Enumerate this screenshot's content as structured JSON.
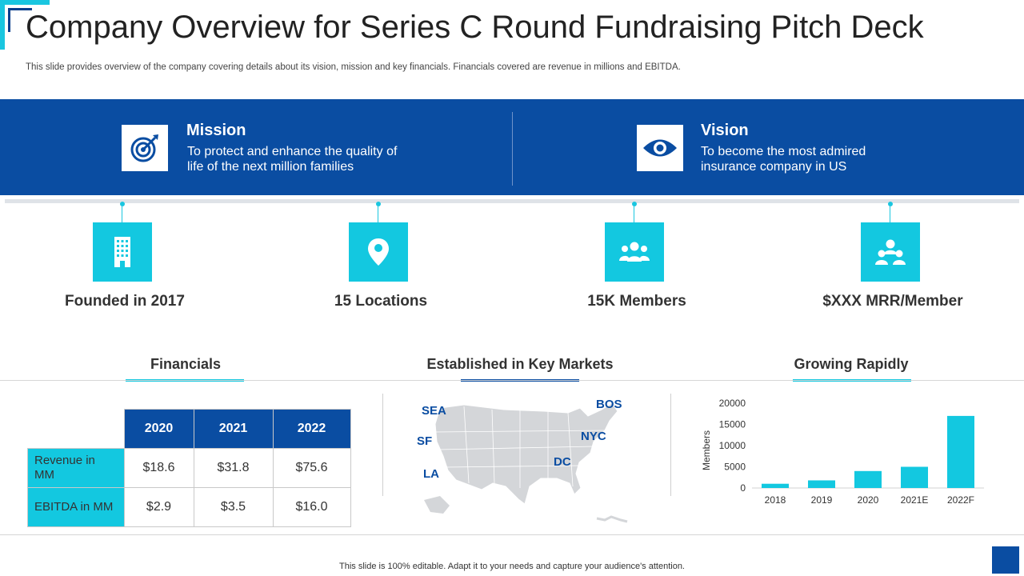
{
  "header": {
    "title": "Company Overview for Series C Round Fundraising Pitch Deck",
    "subtitle": "This slide provides overview of the company covering details about its vision, mission and key financials. Financials covered are revenue in millions and EBITDA."
  },
  "mission": {
    "title": "Mission",
    "text": "To protect and enhance the quality of life of the next million families",
    "icon": "target-icon"
  },
  "vision": {
    "title": "Vision",
    "text": "To become the most admired insurance company in US",
    "icon": "eye-icon"
  },
  "stats": [
    {
      "label": "Founded in 2017",
      "icon": "building-icon"
    },
    {
      "label": "15 Locations",
      "icon": "location-pin-icon"
    },
    {
      "label": "15K Members",
      "icon": "group-icon"
    },
    {
      "label": "$XXX MRR/Member",
      "icon": "team-icon"
    }
  ],
  "sections": {
    "financials": "Financials",
    "markets": "Established in Key Markets",
    "growth": "Growing Rapidly"
  },
  "financials_table": {
    "columns": [
      "2020",
      "2021",
      "2022"
    ],
    "rows": [
      {
        "label": "Revenue in MM",
        "values": [
          "$18.6",
          "$31.8",
          "$75.6"
        ]
      },
      {
        "label": "EBITDA in MM",
        "values": [
          "$2.9",
          "$3.5",
          "$16.0"
        ]
      }
    ]
  },
  "markets": {
    "cities": [
      "SEA",
      "SF",
      "LA",
      "BOS",
      "NYC",
      "DC"
    ]
  },
  "chart_data": {
    "type": "bar",
    "categories": [
      "2018",
      "2019",
      "2020",
      "2021E",
      "2022F"
    ],
    "values": [
      1000,
      1800,
      4000,
      5000,
      17000
    ],
    "title": "Growing Rapidly",
    "xlabel": "",
    "ylabel": "Members",
    "ylim": [
      0,
      20000
    ],
    "yticks": [
      0,
      5000,
      10000,
      15000,
      20000
    ],
    "grid": false,
    "color": "#13c8e0"
  },
  "footer": {
    "text": "This slide is 100% editable. Adapt it to your needs and capture your audience's attention."
  },
  "colors": {
    "primary": "#0a4da2",
    "accent": "#13c8e0"
  }
}
